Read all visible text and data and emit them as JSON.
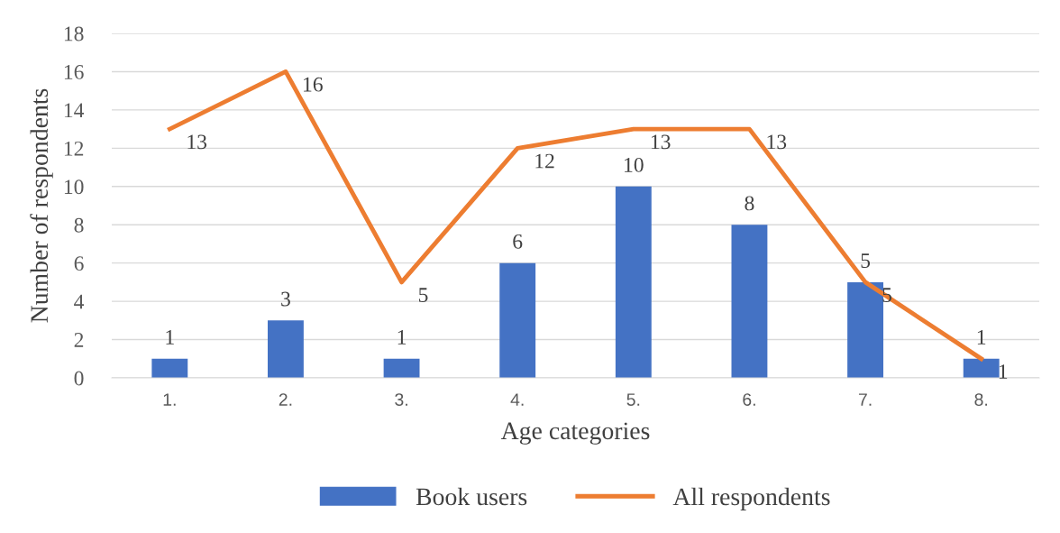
{
  "chart_data": {
    "type": "bar",
    "xlabel": "Age categories",
    "ylabel": "Number of respondents",
    "categories": [
      "1.",
      "2.",
      "3.",
      "4.",
      "5.",
      "6.",
      "7.",
      "8."
    ],
    "series": [
      {
        "name": "Book users",
        "color": "#4472c4",
        "values": [
          1,
          3,
          1,
          6,
          10,
          8,
          5,
          1
        ]
      },
      {
        "name": "All respondents",
        "type": "line",
        "color": "#ed7d31",
        "values": [
          13,
          16,
          5,
          12,
          13,
          13,
          5,
          1
        ]
      }
    ],
    "ylim": [
      0,
      18
    ],
    "yticks": [
      0,
      2,
      4,
      6,
      8,
      10,
      12,
      14,
      16,
      18
    ],
    "grid": "y",
    "legend": "bottom",
    "data_labels": true,
    "marker": "none",
    "line_style": "solid"
  }
}
